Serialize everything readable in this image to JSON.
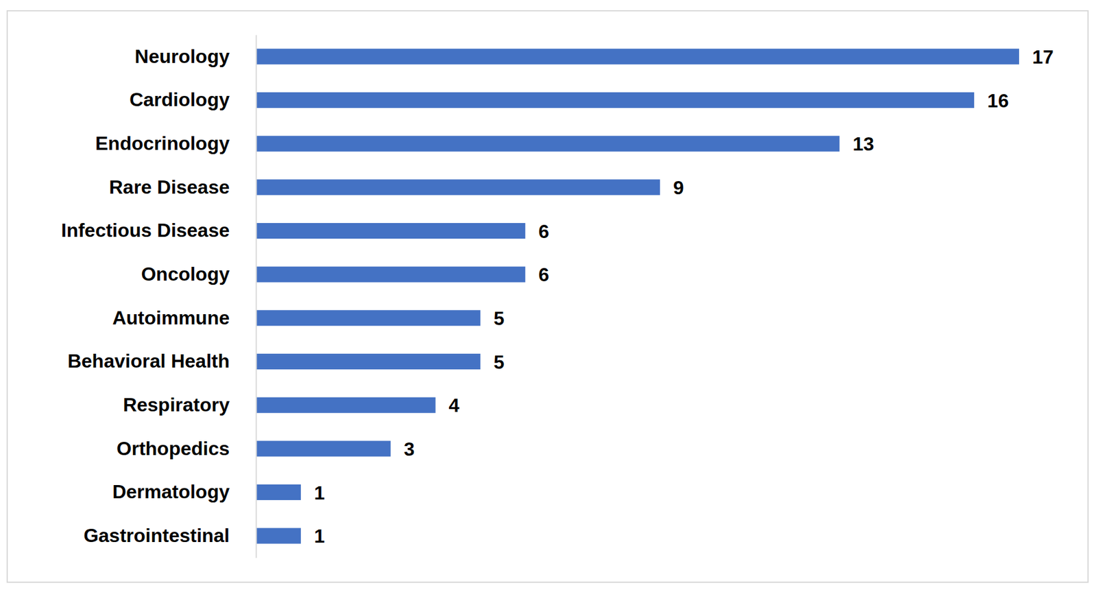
{
  "chart_data": {
    "type": "bar",
    "orientation": "horizontal",
    "categories": [
      "Neurology",
      "Cardiology",
      "Endocrinology",
      "Rare Disease",
      "Infectious Disease",
      "Oncology",
      "Autoimmune",
      "Behavioral Health",
      "Respiratory",
      "Orthopedics",
      "Dermatology",
      "Gastrointestinal"
    ],
    "values": [
      17,
      16,
      13,
      9,
      6,
      6,
      5,
      5,
      4,
      3,
      1,
      1
    ],
    "color": "#4472c4",
    "xlim": [
      0,
      17
    ],
    "data_labels": true,
    "tick_labels": "y"
  }
}
